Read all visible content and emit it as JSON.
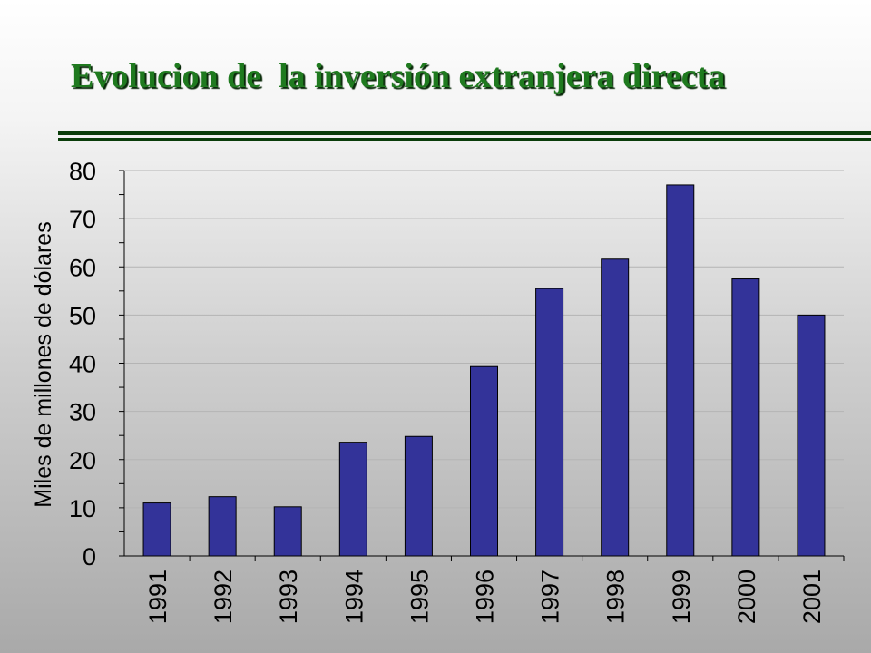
{
  "slide": {
    "title": "Evolucion de  la inversión extranjera directa",
    "colors": {
      "title": "#1f7a1f",
      "rule": "#0a3d0a",
      "bar": "#333399"
    }
  },
  "chart_data": {
    "type": "bar",
    "title": "",
    "xlabel": "",
    "ylabel": "Miles de millones de dólares",
    "categories": [
      "1991",
      "1992",
      "1993",
      "1994",
      "1995",
      "1996",
      "1997",
      "1998",
      "1999",
      "2000",
      "2001"
    ],
    "values": [
      11,
      12.3,
      10.2,
      23.6,
      24.8,
      39.3,
      55.5,
      61.6,
      77,
      57.5,
      50
    ],
    "ylim": [
      0,
      80
    ],
    "yticks": [
      "0",
      "10",
      "20",
      "30",
      "40",
      "50",
      "60",
      "70",
      "80"
    ],
    "grid": true,
    "bar_color": "#333399"
  }
}
